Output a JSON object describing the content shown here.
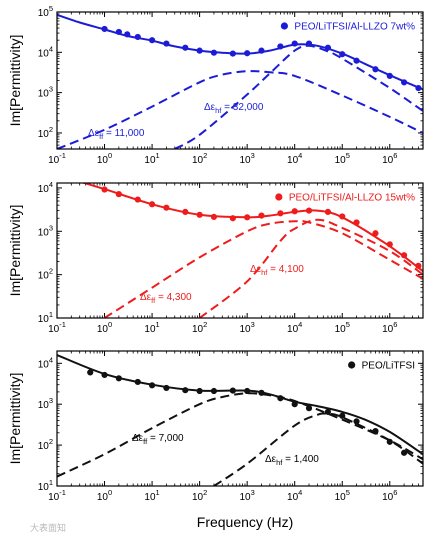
{
  "figure": {
    "xlabel": "Frequency (Hz)",
    "ylabel": "Im[Permittivity]",
    "watermark": "大表面知"
  },
  "chart_data": [
    {
      "type": "scatter",
      "panel": "top",
      "color": "#1c1cd6",
      "xlim": [
        0.1,
        5000000
      ],
      "ylim": [
        40,
        100000
      ],
      "x_scale": "log",
      "y_scale": "log",
      "xticks": [
        "10-1",
        "100",
        "101",
        "102",
        "103",
        "104",
        "105",
        "106"
      ],
      "yticks": [
        "102",
        "103",
        "104",
        "105"
      ],
      "legend": {
        "label": "PEO/LiTFSI/Al-LLZO 7wt%",
        "position": "top-right"
      },
      "annotations": [
        {
          "label": "Δεff = 11,000"
        },
        {
          "label": "Δεhf = 32,000"
        }
      ],
      "series": [
        {
          "name": "PEO/LiTFSI/Al-LLZO 7wt%",
          "type": "scatter",
          "x": [
            1,
            2,
            3,
            5,
            10,
            20,
            50,
            100,
            200,
            500,
            1000,
            2000,
            5000,
            10000,
            20000,
            50000,
            100000,
            200000,
            500000,
            1000000,
            2000000,
            4000000
          ],
          "y": [
            38000,
            32000,
            28000,
            24000,
            20000,
            16500,
            13000,
            11000,
            9800,
            9300,
            9500,
            11000,
            14000,
            16500,
            16500,
            13000,
            9000,
            6200,
            3800,
            2600,
            1800,
            1300
          ]
        },
        {
          "name": "fit",
          "type": "line",
          "style": "solid",
          "x": [
            0.1,
            0.3,
            1,
            3,
            10,
            30,
            100,
            300,
            1000,
            3000,
            10000,
            30000,
            100000,
            300000,
            1000000,
            5000000
          ],
          "y": [
            85000,
            55000,
            37000,
            25500,
            19500,
            14000,
            11000,
            9800,
            9300,
            11000,
            15500,
            14500,
            9300,
            5200,
            2700,
            1200
          ]
        },
        {
          "name": "low-frequency relaxation",
          "type": "line",
          "style": "dashed",
          "x": [
            0.1,
            1,
            10,
            100,
            300,
            1000,
            3000,
            10000,
            100000,
            1000000,
            5000000
          ],
          "y": [
            40,
            120,
            450,
            1800,
            2800,
            3400,
            3200,
            2600,
            850,
            250,
            100
          ]
        },
        {
          "name": "high-frequency relaxation",
          "type": "line",
          "style": "dashed",
          "x": [
            30,
            100,
            1000,
            3000,
            10000,
            20000,
            50000,
            100000,
            1000000,
            5000000
          ],
          "y": [
            40,
            90,
            900,
            3000,
            11000,
            14500,
            10500,
            7000,
            1300,
            350
          ]
        }
      ]
    },
    {
      "type": "scatter",
      "panel": "middle",
      "color": "#ee1c1c",
      "xlim": [
        0.1,
        5000000
      ],
      "ylim": [
        10,
        13000
      ],
      "x_scale": "log",
      "y_scale": "log",
      "xticks": [
        "10-1",
        "100",
        "101",
        "102",
        "103",
        "104",
        "105",
        "106"
      ],
      "yticks": [
        "101",
        "102",
        "103",
        "104"
      ],
      "legend": {
        "label": "PEO/LiTFSI/Al-LLZO 15wt%",
        "position": "top-right"
      },
      "annotations": [
        {
          "label": "Δεff = 4,300"
        },
        {
          "label": "Δεhf = 4,100"
        }
      ],
      "series": [
        {
          "name": "PEO/LiTFSI/Al-LLZO 15wt%",
          "type": "scatter",
          "x": [
            1,
            2,
            5,
            10,
            20,
            50,
            100,
            200,
            500,
            1000,
            2000,
            5000,
            10000,
            20000,
            50000,
            100000,
            200000,
            500000,
            1000000,
            2000000,
            4000000
          ],
          "y": [
            9200,
            7200,
            5400,
            4200,
            3500,
            2800,
            2400,
            2150,
            2000,
            2100,
            2300,
            2600,
            2900,
            3000,
            2800,
            2200,
            1600,
            900,
            500,
            280,
            160
          ]
        },
        {
          "name": "fit",
          "type": "line",
          "style": "solid",
          "x": [
            0.1,
            1,
            10,
            100,
            1000,
            3000,
            10000,
            30000,
            100000,
            1000000,
            5000000
          ],
          "y": [
            20000,
            9400,
            4200,
            2400,
            2100,
            2300,
            2800,
            3000,
            2100,
            450,
            120
          ]
        },
        {
          "name": "low-frequency relaxation",
          "type": "line",
          "style": "dashed",
          "x": [
            1,
            10,
            100,
            1000,
            3000,
            10000,
            20000,
            100000,
            1000000,
            5000000
          ],
          "y": [
            10,
            50,
            250,
            1000,
            1500,
            1700,
            1600,
            900,
            220,
            80
          ]
        },
        {
          "name": "high-frequency relaxation",
          "type": "line",
          "style": "dashed",
          "x": [
            100,
            1000,
            5000,
            10000,
            30000,
            100000,
            1000000,
            5000000
          ],
          "y": [
            10,
            70,
            600,
            1150,
            1850,
            1200,
            350,
            100
          ]
        }
      ]
    },
    {
      "type": "scatter",
      "panel": "bottom",
      "color": "#111111",
      "xlim": [
        0.1,
        5000000
      ],
      "ylim": [
        10,
        20000
      ],
      "x_scale": "log",
      "y_scale": "log",
      "xticks": [
        "10-1",
        "100",
        "101",
        "102",
        "103",
        "104",
        "105",
        "106"
      ],
      "yticks": [
        "101",
        "102",
        "103",
        "104"
      ],
      "legend": {
        "label": "PEO/LiTFSI",
        "position": "top-right"
      },
      "annotations": [
        {
          "label": "Δεff = 7,000"
        },
        {
          "label": "Δεhf = 1,400"
        }
      ],
      "series": [
        {
          "name": "PEO/LiTFSI",
          "type": "scatter",
          "x": [
            0.5,
            1,
            2,
            5,
            10,
            20,
            50,
            100,
            200,
            500,
            1000,
            2000,
            5000,
            10000,
            20000,
            50000,
            100000,
            200000,
            500000,
            1000000,
            2000000
          ],
          "y": [
            6000,
            5200,
            4300,
            3500,
            2900,
            2500,
            2200,
            2100,
            2100,
            2150,
            2100,
            1900,
            1400,
            1000,
            800,
            650,
            520,
            380,
            220,
            120,
            65
          ]
        },
        {
          "name": "fit",
          "type": "line",
          "style": "solid",
          "x": [
            0.1,
            1,
            10,
            100,
            1000,
            3000,
            10000,
            30000,
            100000,
            300000,
            1000000,
            5000000
          ],
          "y": [
            16000,
            5500,
            3000,
            2150,
            2150,
            1750,
            1150,
            900,
            650,
            420,
            210,
            60
          ]
        },
        {
          "name": "low-frequency relaxation",
          "type": "line",
          "style": "dashed",
          "x": [
            0.1,
            1,
            10,
            100,
            300,
            1000,
            3000,
            10000,
            100000,
            1000000,
            5000000
          ],
          "y": [
            17,
            60,
            260,
            1000,
            1500,
            1850,
            1650,
            1200,
            420,
            130,
            45
          ]
        },
        {
          "name": "high-frequency relaxation",
          "type": "line",
          "style": "dashed",
          "x": [
            200,
            1000,
            10000,
            30000,
            50000,
            100000,
            1000000,
            5000000
          ],
          "y": [
            10,
            35,
            300,
            550,
            580,
            480,
            130,
            35
          ]
        }
      ]
    }
  ]
}
